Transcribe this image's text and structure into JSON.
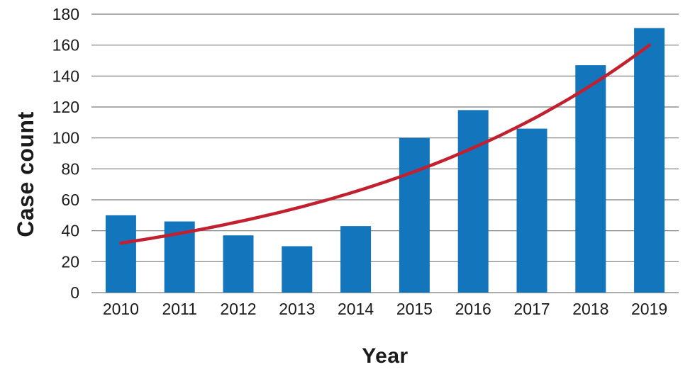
{
  "chart_data": {
    "type": "bar",
    "title": "",
    "xlabel": "Year",
    "ylabel": "Case count",
    "categories": [
      "2010",
      "2011",
      "2012",
      "2013",
      "2014",
      "2015",
      "2016",
      "2017",
      "2018",
      "2019"
    ],
    "series": [
      {
        "name": "Case count",
        "type": "bar",
        "values": [
          50,
          46,
          37,
          30,
          43,
          100,
          118,
          106,
          147,
          171
        ]
      },
      {
        "name": "Exponential trend",
        "type": "line",
        "values": [
          32,
          38.3,
          45.8,
          54.7,
          65.4,
          78.2,
          93.6,
          111.9,
          133.8,
          160
        ]
      }
    ],
    "ylim": [
      0,
      180
    ],
    "ytick_step": 20,
    "grid": true,
    "legend": false,
    "colors": {
      "bar": "#1375BC",
      "trend": "#C2202E",
      "grid": "#7A7A7A",
      "text": "#1B1B1B"
    }
  }
}
